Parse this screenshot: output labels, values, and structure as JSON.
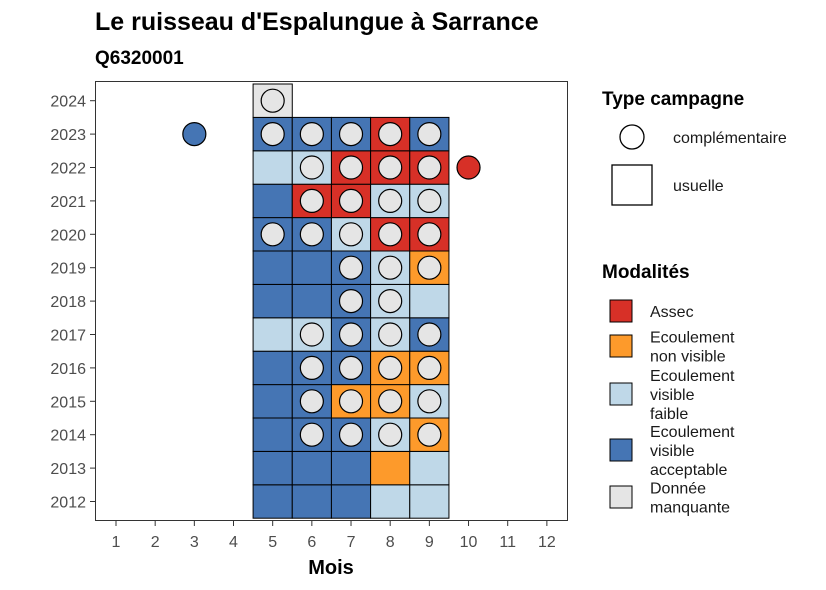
{
  "title": "Le ruisseau d'Espalungue à Sarrance",
  "subtitle": "Q6320001",
  "chart_data": {
    "type": "heatmap",
    "title": "Le ruisseau d'Espalungue à Sarrance",
    "subtitle": "Q6320001",
    "xlabel": "Mois",
    "ylabel": "",
    "x_ticks": [
      "1",
      "2",
      "3",
      "4",
      "5",
      "6",
      "7",
      "8",
      "9",
      "10",
      "11",
      "12"
    ],
    "y_ticks": [
      "2012",
      "2013",
      "2014",
      "2015",
      "2016",
      "2017",
      "2018",
      "2019",
      "2020",
      "2021",
      "2022",
      "2023",
      "2024"
    ],
    "xlim": [
      0.5,
      12.5
    ],
    "ylim": [
      2011.5,
      2024.5
    ],
    "grid": false,
    "legend_position": "right",
    "modalites": [
      {
        "key": "assec",
        "label_lines": [
          "Assec"
        ],
        "color": "#d73027"
      },
      {
        "key": "nonvisible",
        "label_lines": [
          "Ecoulement",
          "non visible"
        ],
        "color": "#fd9a2b"
      },
      {
        "key": "faible",
        "label_lines": [
          "Ecoulement",
          "visible",
          "faible"
        ],
        "color": "#bfd8e8"
      },
      {
        "key": "acceptable",
        "label_lines": [
          "Ecoulement",
          "visible",
          "acceptable"
        ],
        "color": "#4575b4"
      },
      {
        "key": "manquante",
        "label_lines": [
          "Donnée",
          "manquante"
        ],
        "color": "#e5e5e5"
      }
    ],
    "type_campagne": [
      {
        "key": "complementaire",
        "label": "complémentaire",
        "shape": "circle"
      },
      {
        "key": "usuelle",
        "label": "usuelle",
        "shape": "square"
      }
    ],
    "usuelle_cells": [
      {
        "year": 2012,
        "month": 5,
        "modalite": "acceptable"
      },
      {
        "year": 2012,
        "month": 6,
        "modalite": "acceptable"
      },
      {
        "year": 2012,
        "month": 7,
        "modalite": "acceptable"
      },
      {
        "year": 2012,
        "month": 8,
        "modalite": "faible"
      },
      {
        "year": 2012,
        "month": 9,
        "modalite": "faible"
      },
      {
        "year": 2013,
        "month": 5,
        "modalite": "acceptable"
      },
      {
        "year": 2013,
        "month": 6,
        "modalite": "acceptable"
      },
      {
        "year": 2013,
        "month": 7,
        "modalite": "acceptable"
      },
      {
        "year": 2013,
        "month": 8,
        "modalite": "nonvisible"
      },
      {
        "year": 2013,
        "month": 9,
        "modalite": "faible"
      },
      {
        "year": 2014,
        "month": 5,
        "modalite": "acceptable"
      },
      {
        "year": 2014,
        "month": 6,
        "modalite": "acceptable"
      },
      {
        "year": 2014,
        "month": 7,
        "modalite": "acceptable"
      },
      {
        "year": 2014,
        "month": 8,
        "modalite": "faible"
      },
      {
        "year": 2014,
        "month": 9,
        "modalite": "nonvisible"
      },
      {
        "year": 2015,
        "month": 5,
        "modalite": "acceptable"
      },
      {
        "year": 2015,
        "month": 6,
        "modalite": "acceptable"
      },
      {
        "year": 2015,
        "month": 7,
        "modalite": "nonvisible"
      },
      {
        "year": 2015,
        "month": 8,
        "modalite": "nonvisible"
      },
      {
        "year": 2015,
        "month": 9,
        "modalite": "faible"
      },
      {
        "year": 2016,
        "month": 5,
        "modalite": "acceptable"
      },
      {
        "year": 2016,
        "month": 6,
        "modalite": "acceptable"
      },
      {
        "year": 2016,
        "month": 7,
        "modalite": "acceptable"
      },
      {
        "year": 2016,
        "month": 8,
        "modalite": "nonvisible"
      },
      {
        "year": 2016,
        "month": 9,
        "modalite": "nonvisible"
      },
      {
        "year": 2017,
        "month": 5,
        "modalite": "faible"
      },
      {
        "year": 2017,
        "month": 6,
        "modalite": "faible"
      },
      {
        "year": 2017,
        "month": 7,
        "modalite": "acceptable"
      },
      {
        "year": 2017,
        "month": 8,
        "modalite": "faible"
      },
      {
        "year": 2017,
        "month": 9,
        "modalite": "acceptable"
      },
      {
        "year": 2018,
        "month": 5,
        "modalite": "acceptable"
      },
      {
        "year": 2018,
        "month": 6,
        "modalite": "acceptable"
      },
      {
        "year": 2018,
        "month": 7,
        "modalite": "acceptable"
      },
      {
        "year": 2018,
        "month": 8,
        "modalite": "faible"
      },
      {
        "year": 2018,
        "month": 9,
        "modalite": "faible"
      },
      {
        "year": 2019,
        "month": 5,
        "modalite": "acceptable"
      },
      {
        "year": 2019,
        "month": 6,
        "modalite": "acceptable"
      },
      {
        "year": 2019,
        "month": 7,
        "modalite": "acceptable"
      },
      {
        "year": 2019,
        "month": 8,
        "modalite": "faible"
      },
      {
        "year": 2019,
        "month": 9,
        "modalite": "nonvisible"
      },
      {
        "year": 2020,
        "month": 5,
        "modalite": "acceptable"
      },
      {
        "year": 2020,
        "month": 6,
        "modalite": "acceptable"
      },
      {
        "year": 2020,
        "month": 7,
        "modalite": "faible"
      },
      {
        "year": 2020,
        "month": 8,
        "modalite": "assec"
      },
      {
        "year": 2020,
        "month": 9,
        "modalite": "assec"
      },
      {
        "year": 2021,
        "month": 5,
        "modalite": "acceptable"
      },
      {
        "year": 2021,
        "month": 6,
        "modalite": "assec"
      },
      {
        "year": 2021,
        "month": 7,
        "modalite": "assec"
      },
      {
        "year": 2021,
        "month": 8,
        "modalite": "faible"
      },
      {
        "year": 2021,
        "month": 9,
        "modalite": "faible"
      },
      {
        "year": 2022,
        "month": 5,
        "modalite": "faible"
      },
      {
        "year": 2022,
        "month": 6,
        "modalite": "faible"
      },
      {
        "year": 2022,
        "month": 7,
        "modalite": "assec"
      },
      {
        "year": 2022,
        "month": 8,
        "modalite": "assec"
      },
      {
        "year": 2022,
        "month": 9,
        "modalite": "assec"
      },
      {
        "year": 2023,
        "month": 5,
        "modalite": "acceptable"
      },
      {
        "year": 2023,
        "month": 6,
        "modalite": "acceptable"
      },
      {
        "year": 2023,
        "month": 7,
        "modalite": "acceptable"
      },
      {
        "year": 2023,
        "month": 8,
        "modalite": "assec"
      },
      {
        "year": 2023,
        "month": 9,
        "modalite": "acceptable"
      },
      {
        "year": 2024,
        "month": 5,
        "modalite": "manquante"
      }
    ],
    "complementaire_points": [
      {
        "year": 2014,
        "month": 6,
        "modalite": "manquante"
      },
      {
        "year": 2014,
        "month": 7,
        "modalite": "manquante"
      },
      {
        "year": 2014,
        "month": 8,
        "modalite": "manquante"
      },
      {
        "year": 2014,
        "month": 9,
        "modalite": "manquante"
      },
      {
        "year": 2015,
        "month": 6,
        "modalite": "manquante"
      },
      {
        "year": 2015,
        "month": 7,
        "modalite": "manquante"
      },
      {
        "year": 2015,
        "month": 8,
        "modalite": "manquante"
      },
      {
        "year": 2015,
        "month": 9,
        "modalite": "manquante"
      },
      {
        "year": 2016,
        "month": 6,
        "modalite": "manquante"
      },
      {
        "year": 2016,
        "month": 7,
        "modalite": "manquante"
      },
      {
        "year": 2016,
        "month": 8,
        "modalite": "manquante"
      },
      {
        "year": 2016,
        "month": 9,
        "modalite": "manquante"
      },
      {
        "year": 2017,
        "month": 6,
        "modalite": "manquante"
      },
      {
        "year": 2017,
        "month": 7,
        "modalite": "manquante"
      },
      {
        "year": 2017,
        "month": 8,
        "modalite": "manquante"
      },
      {
        "year": 2017,
        "month": 9,
        "modalite": "manquante"
      },
      {
        "year": 2018,
        "month": 7,
        "modalite": "manquante"
      },
      {
        "year": 2018,
        "month": 8,
        "modalite": "manquante"
      },
      {
        "year": 2019,
        "month": 7,
        "modalite": "manquante"
      },
      {
        "year": 2019,
        "month": 8,
        "modalite": "manquante"
      },
      {
        "year": 2019,
        "month": 9,
        "modalite": "manquante"
      },
      {
        "year": 2020,
        "month": 5,
        "modalite": "manquante"
      },
      {
        "year": 2020,
        "month": 6,
        "modalite": "manquante"
      },
      {
        "year": 2020,
        "month": 7,
        "modalite": "manquante"
      },
      {
        "year": 2020,
        "month": 8,
        "modalite": "manquante"
      },
      {
        "year": 2020,
        "month": 9,
        "modalite": "manquante"
      },
      {
        "year": 2021,
        "month": 6,
        "modalite": "manquante"
      },
      {
        "year": 2021,
        "month": 7,
        "modalite": "manquante"
      },
      {
        "year": 2021,
        "month": 8,
        "modalite": "manquante"
      },
      {
        "year": 2021,
        "month": 9,
        "modalite": "manquante"
      },
      {
        "year": 2022,
        "month": 6,
        "modalite": "manquante"
      },
      {
        "year": 2022,
        "month": 7,
        "modalite": "manquante"
      },
      {
        "year": 2022,
        "month": 8,
        "modalite": "manquante"
      },
      {
        "year": 2022,
        "month": 9,
        "modalite": "manquante"
      },
      {
        "year": 2022,
        "month": 10,
        "modalite": "assec"
      },
      {
        "year": 2023,
        "month": 3,
        "modalite": "acceptable"
      },
      {
        "year": 2023,
        "month": 5,
        "modalite": "manquante"
      },
      {
        "year": 2023,
        "month": 6,
        "modalite": "manquante"
      },
      {
        "year": 2023,
        "month": 7,
        "modalite": "manquante"
      },
      {
        "year": 2023,
        "month": 8,
        "modalite": "manquante"
      },
      {
        "year": 2023,
        "month": 9,
        "modalite": "manquante"
      },
      {
        "year": 2024,
        "month": 5,
        "modalite": "manquante"
      }
    ]
  }
}
